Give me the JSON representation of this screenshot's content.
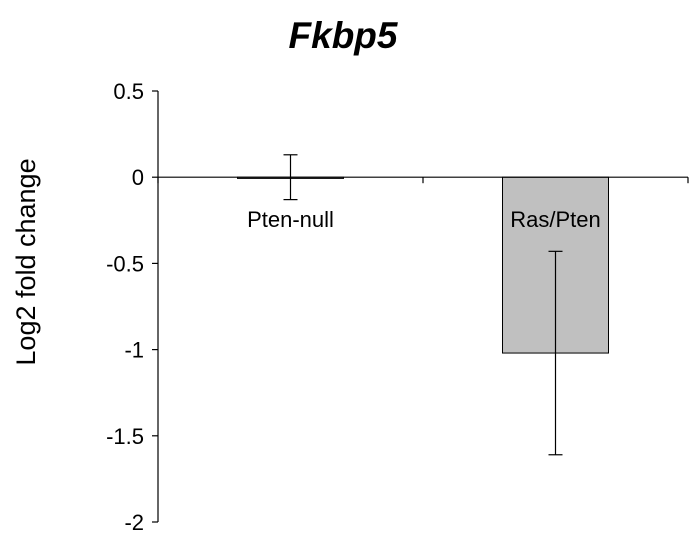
{
  "chart_data": {
    "type": "bar",
    "title": "Fkbp5",
    "ylabel": "Log2 fold change",
    "xlabel": "",
    "categories": [
      "Pten-null",
      "Ras/Pten"
    ],
    "values": [
      0.0,
      -1.02
    ],
    "error": [
      0.13,
      0.59
    ],
    "ylim": [
      -2,
      0.5
    ],
    "yticks": [
      0.5,
      0,
      -0.5,
      -1,
      -1.5,
      -2
    ],
    "ytick_labels": [
      "0.5",
      "0",
      "-0.5",
      "-1",
      "-1.5",
      "-2"
    ],
    "grid": false,
    "legend": "none",
    "bar_color": "#c0c0c0",
    "bar_edge_color": "#000000"
  }
}
